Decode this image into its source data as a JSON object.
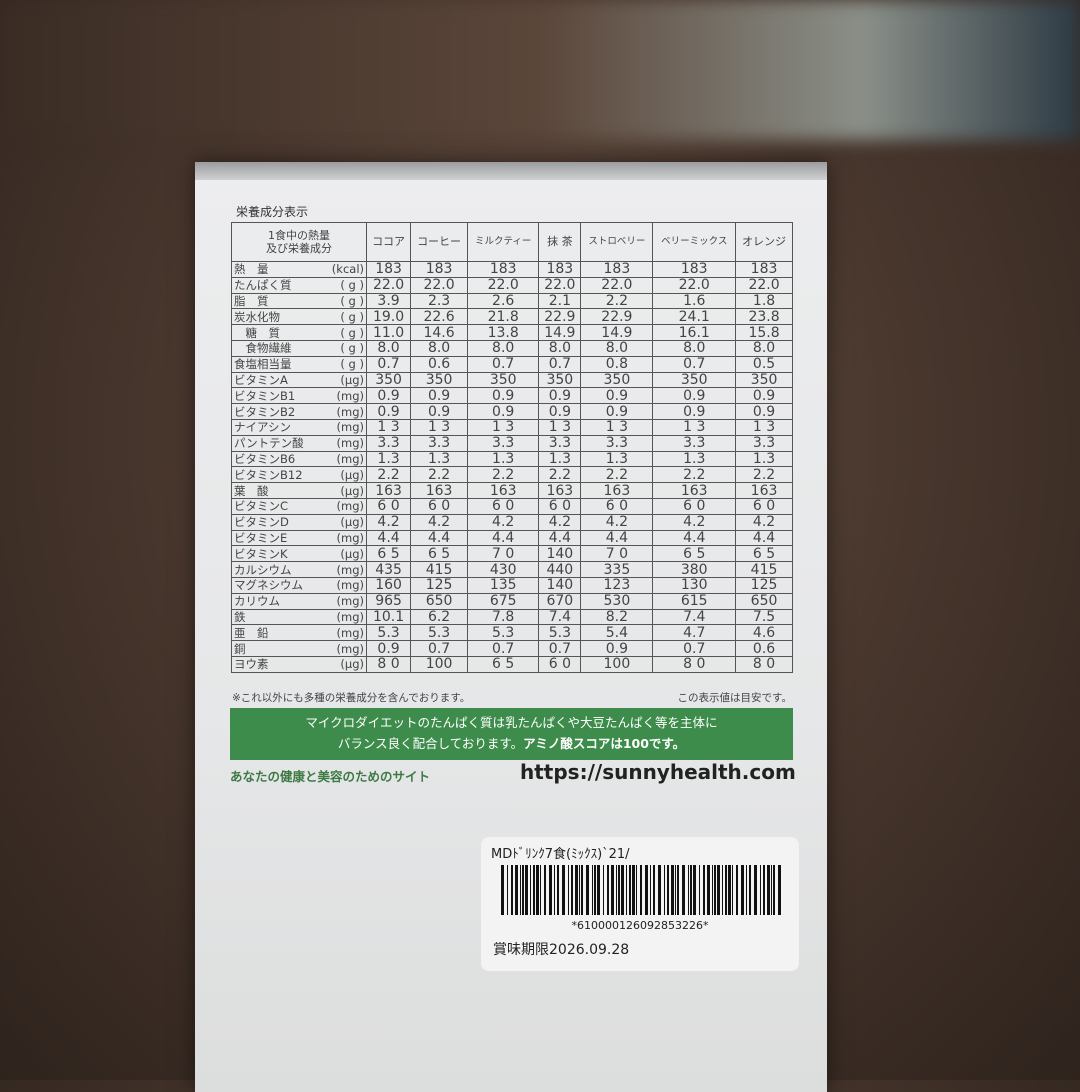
{
  "title": "栄養成分表示",
  "header": {
    "label": "1食中の熱量\n及び栄養成分",
    "flavors": [
      "ココア",
      "コーヒー",
      "ミルクティー",
      "抹 茶",
      "ストロベリー",
      "ベリーミックス",
      "オレンジ"
    ]
  },
  "rows": [
    {
      "name": "熱　量",
      "unit": "(kcal)",
      "values": [
        "183",
        "183",
        "183",
        "183",
        "183",
        "183",
        "183"
      ]
    },
    {
      "name": "たんぱく質",
      "unit": "( g )",
      "values": [
        "22.0",
        "22.0",
        "22.0",
        "22.0",
        "22.0",
        "22.0",
        "22.0"
      ]
    },
    {
      "name": "脂　質",
      "unit": "( g )",
      "values": [
        "3.9",
        "2.3",
        "2.6",
        "2.1",
        "2.2",
        "1.6",
        "1.8"
      ]
    },
    {
      "name": "炭水化物",
      "unit": "( g )",
      "values": [
        "19.0",
        "22.6",
        "21.8",
        "22.9",
        "22.9",
        "24.1",
        "23.8"
      ]
    },
    {
      "name": "　糖　質",
      "unit": "( g )",
      "values": [
        "11.0",
        "14.6",
        "13.8",
        "14.9",
        "14.9",
        "16.1",
        "15.8"
      ]
    },
    {
      "name": "　食物繊維",
      "unit": "( g )",
      "values": [
        "8.0",
        "8.0",
        "8.0",
        "8.0",
        "8.0",
        "8.0",
        "8.0"
      ]
    },
    {
      "name": "食塩相当量",
      "unit": "( g )",
      "values": [
        "0.7",
        "0.6",
        "0.7",
        "0.7",
        "0.8",
        "0.7",
        "0.5"
      ]
    },
    {
      "name": "ビタミンA",
      "unit": "(μg)",
      "values": [
        "350",
        "350",
        "350",
        "350",
        "350",
        "350",
        "350"
      ]
    },
    {
      "name": "ビタミンB1",
      "unit": "(mg)",
      "values": [
        "0.9",
        "0.9",
        "0.9",
        "0.9",
        "0.9",
        "0.9",
        "0.9"
      ]
    },
    {
      "name": "ビタミンB2",
      "unit": "(mg)",
      "values": [
        "0.9",
        "0.9",
        "0.9",
        "0.9",
        "0.9",
        "0.9",
        "0.9"
      ]
    },
    {
      "name": "ナイアシン",
      "unit": "(mg)",
      "values": [
        "1 3",
        "1 3",
        "1 3",
        "1 3",
        "1 3",
        "1 3",
        "1 3"
      ]
    },
    {
      "name": "パントテン酸",
      "unit": "(mg)",
      "values": [
        "3.3",
        "3.3",
        "3.3",
        "3.3",
        "3.3",
        "3.3",
        "3.3"
      ]
    },
    {
      "name": "ビタミンB6",
      "unit": "(mg)",
      "values": [
        "1.3",
        "1.3",
        "1.3",
        "1.3",
        "1.3",
        "1.3",
        "1.3"
      ]
    },
    {
      "name": "ビタミンB12",
      "unit": "(μg)",
      "values": [
        "2.2",
        "2.2",
        "2.2",
        "2.2",
        "2.2",
        "2.2",
        "2.2"
      ]
    },
    {
      "name": "葉　酸",
      "unit": "(μg)",
      "values": [
        "163",
        "163",
        "163",
        "163",
        "163",
        "163",
        "163"
      ]
    },
    {
      "name": "ビタミンC",
      "unit": "(mg)",
      "values": [
        "6 0",
        "6 0",
        "6 0",
        "6 0",
        "6 0",
        "6 0",
        "6 0"
      ]
    },
    {
      "name": "ビタミンD",
      "unit": "(μg)",
      "values": [
        "4.2",
        "4.2",
        "4.2",
        "4.2",
        "4.2",
        "4.2",
        "4.2"
      ]
    },
    {
      "name": "ビタミンE",
      "unit": "(mg)",
      "values": [
        "4.4",
        "4.4",
        "4.4",
        "4.4",
        "4.4",
        "4.4",
        "4.4"
      ]
    },
    {
      "name": "ビタミンK",
      "unit": "(μg)",
      "values": [
        "6 5",
        "6 5",
        "7 0",
        "140",
        "7 0",
        "6 5",
        "6 5"
      ]
    },
    {
      "name": "カルシウム",
      "unit": "(mg)",
      "values": [
        "435",
        "415",
        "430",
        "440",
        "335",
        "380",
        "415"
      ]
    },
    {
      "name": "マグネシウム",
      "unit": "(mg)",
      "values": [
        "160",
        "125",
        "135",
        "140",
        "123",
        "130",
        "125"
      ]
    },
    {
      "name": "カリウム",
      "unit": "(mg)",
      "values": [
        "965",
        "650",
        "675",
        "670",
        "530",
        "615",
        "650"
      ]
    },
    {
      "name": "鉄",
      "unit": "(mg)",
      "values": [
        "10.1",
        "6.2",
        "7.8",
        "7.4",
        "8.2",
        "7.4",
        "7.5"
      ]
    },
    {
      "name": "亜　鉛",
      "unit": "(mg)",
      "values": [
        "5.3",
        "5.3",
        "5.3",
        "5.3",
        "5.4",
        "4.7",
        "4.6"
      ]
    },
    {
      "name": "銅",
      "unit": "(mg)",
      "values": [
        "0.9",
        "0.7",
        "0.7",
        "0.7",
        "0.9",
        "0.7",
        "0.6"
      ]
    },
    {
      "name": "ヨウ素",
      "unit": "(μg)",
      "values": [
        "8 0",
        "100",
        "6 5",
        "6 0",
        "100",
        "8 0",
        "8 0"
      ]
    }
  ],
  "note_left": "※これ以外にも多種の栄養成分を含んでおります。",
  "note_right": "この表示値は目安です。",
  "banner": {
    "line1": "マイクロダイエットのたんぱく質は乳たんぱくや大豆たんぱく等を主体に",
    "line2a": "バランス良く配合しております。",
    "line2b": "アミノ酸スコアは100です。"
  },
  "tagline": "あなたの健康と美容のためのサイト",
  "url": "https://sunnyhealth.com",
  "label": {
    "product": "MDﾄﾞﾘﾝｸ7食(ﾐｯｸｽ)`21/",
    "barcode": "*610000126092853226*",
    "expiry": "賞味期限2026.09.28"
  },
  "colors": {
    "banner": "#3e8c4c",
    "tagline": "#3e7a46"
  }
}
